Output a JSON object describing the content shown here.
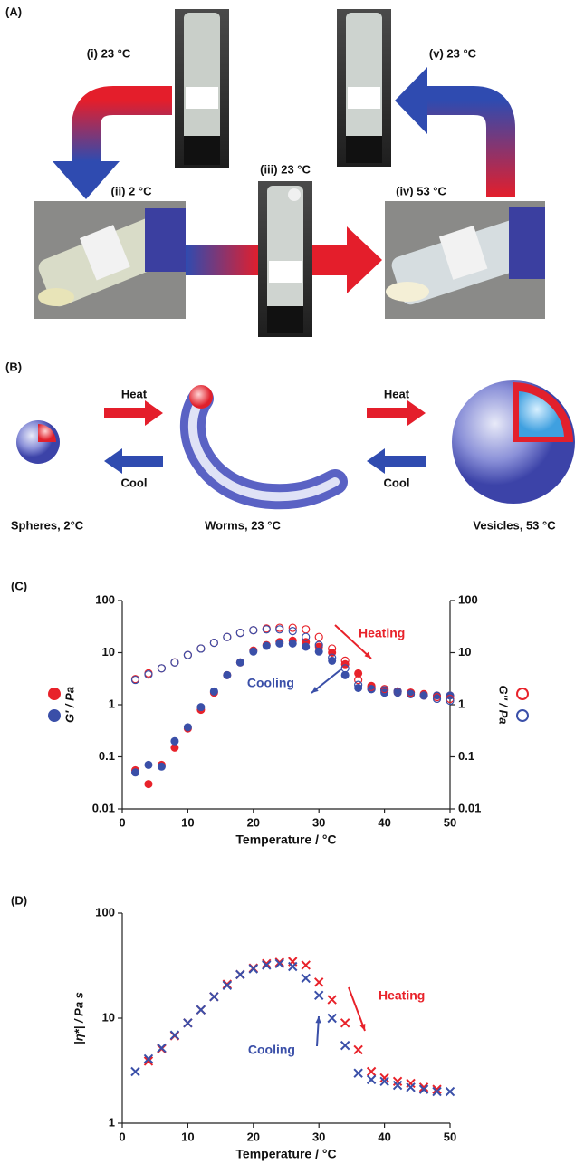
{
  "panel_a": {
    "label": "(A)",
    "steps": [
      "(i) 23 °C",
      "(ii) 2 °C",
      "(iii) 23 °C",
      "(iv) 53 °C",
      "(v) 23 °C"
    ]
  },
  "panel_b": {
    "label": "(B)",
    "heat": "Heat",
    "cool": "Cool",
    "morphologies": [
      "Spheres, 2°C",
      "Worms, 23 °C",
      "Vesicles, 53 °C"
    ]
  },
  "chart_data": [
    {
      "type": "scatter",
      "panel_label": "(C)",
      "xlabel": "Temperature / °C",
      "ylabel": "G′ / Pa",
      "y2label": "G″ / Pa",
      "log_y": true,
      "xlim": [
        0,
        50
      ],
      "xticks": [
        0,
        10,
        20,
        30,
        40,
        50
      ],
      "ylim": [
        0.01,
        100
      ],
      "yticks": [
        0.01,
        0.1,
        1,
        10,
        100
      ],
      "y2lim": [
        0.01,
        100
      ],
      "y2ticks": [
        0.01,
        0.1,
        1,
        10,
        100
      ],
      "annotations": [
        "Heating",
        "Cooling"
      ],
      "x": [
        2,
        4,
        6,
        8,
        10,
        12,
        14,
        16,
        18,
        20,
        22,
        24,
        26,
        28,
        30,
        32,
        34,
        36,
        38,
        40,
        42,
        44,
        46,
        48,
        50
      ],
      "series": [
        {
          "color": "#e8222a",
          "marker": "filled",
          "values": [
            0.055,
            0.03,
            0.07,
            0.15,
            0.35,
            0.8,
            1.7,
            3.7,
            6.5,
            11,
            14,
            16,
            17,
            16,
            13,
            10,
            6,
            4,
            2.3,
            1.9,
            1.8,
            1.7,
            1.6,
            1.5,
            1.5
          ]
        },
        {
          "color": "#3a4fa8",
          "marker": "filled",
          "values": [
            0.05,
            0.07,
            0.065,
            0.2,
            0.37,
            0.9,
            1.8,
            3.7,
            6.5,
            10.5,
            13.5,
            15,
            15,
            13,
            10.5,
            7,
            3.7,
            2.1,
            2.0,
            1.7,
            1.7,
            1.6,
            1.5,
            1.5,
            1.5
          ]
        },
        {
          "color": "#e8222a",
          "marker": "open",
          "axis": "y2",
          "values": [
            3.1,
            4,
            5,
            6.5,
            9,
            12,
            15.5,
            20,
            24,
            27,
            29,
            30,
            30,
            28,
            20,
            12,
            7,
            3,
            2.2,
            2,
            1.8,
            1.7,
            1.5,
            1.4,
            1.3
          ]
        },
        {
          "color": "#3a4fa8",
          "marker": "open",
          "axis": "y2",
          "values": [
            3,
            3.8,
            5,
            6.5,
            9,
            12,
            15.5,
            20,
            24,
            27,
            28,
            28,
            26,
            20,
            14,
            8,
            5,
            2.4,
            2.0,
            1.9,
            1.8,
            1.6,
            1.5,
            1.3,
            1.2
          ]
        }
      ]
    },
    {
      "type": "scatter",
      "panel_label": "(D)",
      "xlabel": "Temperature / °C",
      "ylabel": "|η*| / Pa s",
      "log_y": true,
      "xlim": [
        0,
        50
      ],
      "xticks": [
        0,
        10,
        20,
        30,
        40,
        50
      ],
      "ylim": [
        1,
        100
      ],
      "yticks": [
        1,
        10,
        100
      ],
      "annotations": [
        "Heating",
        "Cooling"
      ],
      "x": [
        2,
        4,
        6,
        8,
        10,
        12,
        14,
        16,
        18,
        20,
        22,
        24,
        26,
        28,
        30,
        32,
        34,
        36,
        38,
        40,
        42,
        44,
        46,
        48,
        50
      ],
      "series": [
        {
          "color": "#e8222a",
          "marker": "cross",
          "values": [
            null,
            3.9,
            5.1,
            6.8,
            9,
            12,
            16,
            21,
            26,
            30,
            33,
            34,
            34.5,
            32,
            22,
            15,
            9,
            5,
            3.1,
            2.7,
            2.5,
            2.4,
            2.2,
            2.1,
            null
          ]
        },
        {
          "color": "#3a4fa8",
          "marker": "cross",
          "values": [
            3.1,
            4.1,
            5.2,
            6.9,
            9,
            12,
            16,
            20.5,
            26,
            29.5,
            32,
            33,
            31,
            24,
            16.5,
            10,
            5.5,
            3,
            2.6,
            2.5,
            2.3,
            2.2,
            2.1,
            2.0,
            2.0
          ]
        }
      ]
    }
  ]
}
